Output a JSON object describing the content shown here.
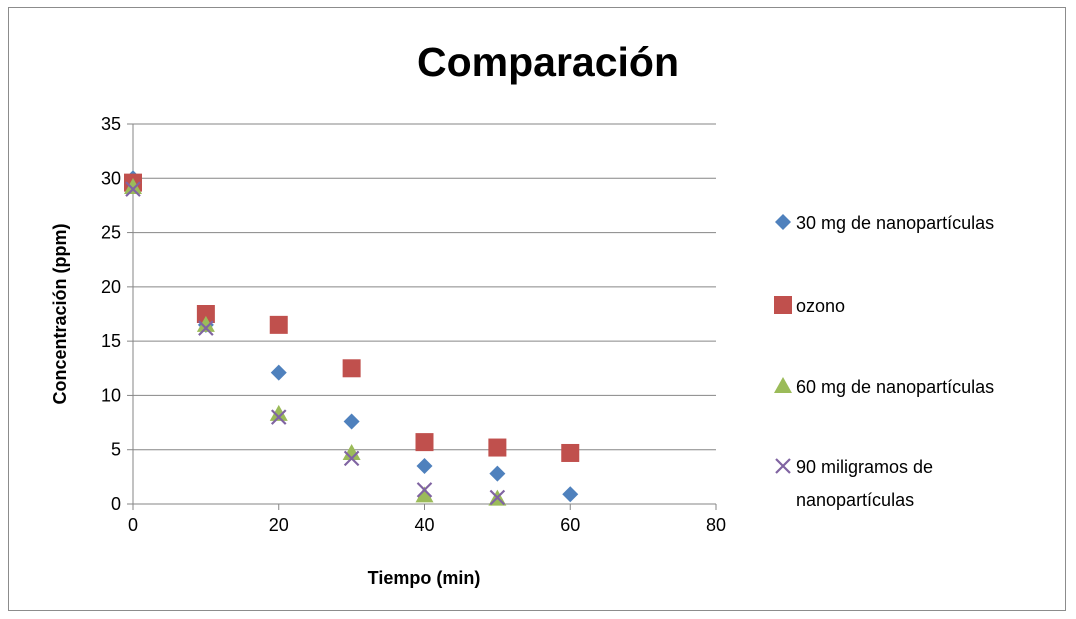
{
  "chart_data": {
    "type": "scatter",
    "title": "Comparación",
    "xlabel": "Tiempo (min)",
    "ylabel": "Concentración (ppm)",
    "xlim": [
      0,
      80
    ],
    "ylim": [
      0,
      35
    ],
    "xticks": [
      "0",
      "20",
      "40",
      "60",
      "80"
    ],
    "yticks": [
      "0",
      "5",
      "10",
      "15",
      "20",
      "25",
      "30",
      "35"
    ],
    "grid": "horizontal",
    "legend_position": "right",
    "series": [
      {
        "name": "30 mg de nanopartículas",
        "marker": "diamond",
        "color": "#4f81bd",
        "x": [
          0,
          10,
          20,
          30,
          40,
          50,
          60
        ],
        "y": [
          30,
          16.5,
          12.1,
          7.6,
          3.5,
          2.8,
          0.9
        ]
      },
      {
        "name": "ozono",
        "marker": "square",
        "color": "#c0504d",
        "x": [
          0,
          10,
          20,
          30,
          40,
          50,
          60
        ],
        "y": [
          29.6,
          17.5,
          16.5,
          12.5,
          5.7,
          5.2,
          4.7
        ]
      },
      {
        "name": "60 mg de nanopartículas",
        "marker": "triangle",
        "color": "#9bbb59",
        "x": [
          0,
          10,
          20,
          30,
          40,
          50
        ],
        "y": [
          29.2,
          16.5,
          8.3,
          4.7,
          0.8,
          0.5
        ]
      },
      {
        "name": "90 miligramos de nanopartículas",
        "legend_lines": [
          "90 miligramos de",
          "nanopartículas"
        ],
        "marker": "x",
        "color": "#8064a2",
        "x": [
          0,
          10,
          20,
          30,
          40,
          50
        ],
        "y": [
          29,
          16.2,
          8,
          4.2,
          1.3,
          0.6
        ]
      }
    ]
  }
}
